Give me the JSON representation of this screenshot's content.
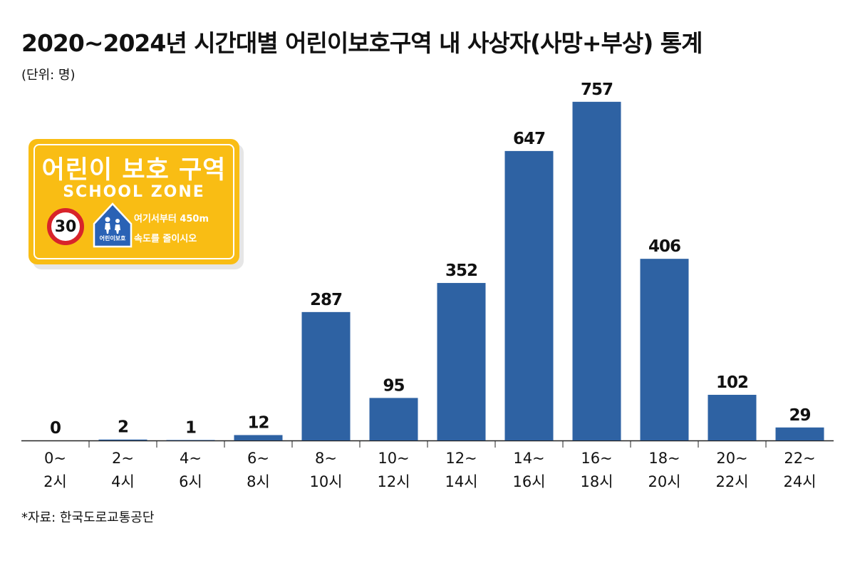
{
  "title": "2020~2024년 시간대별 어린이보호구역 내 사상자(사망+부상) 통계",
  "unit": "(단위: 명)",
  "source": "*자료: 한국도로교통공단",
  "sign": {
    "title": "어린이 보호 구역",
    "subtitle": "SCHOOL ZONE",
    "speed": "30",
    "icon_label": "어린이보호",
    "line1": "여기서부터 450m",
    "line2": "속도를 줄이시오",
    "icon": "pedestrian-children-icon",
    "colors": {
      "background": "#f9bd14",
      "speed_ring": "#d8232a",
      "icon_bg": "#2a62b5"
    }
  },
  "chart_data": {
    "type": "bar",
    "categories": [
      [
        "0~",
        "2시"
      ],
      [
        "2~",
        "4시"
      ],
      [
        "4~",
        "6시"
      ],
      [
        "6~",
        "8시"
      ],
      [
        "8~",
        "10시"
      ],
      [
        "10~",
        "12시"
      ],
      [
        "12~",
        "14시"
      ],
      [
        "14~",
        "16시"
      ],
      [
        "16~",
        "18시"
      ],
      [
        "18~",
        "20시"
      ],
      [
        "20~",
        "22시"
      ],
      [
        "22~",
        "24시"
      ]
    ],
    "values": [
      0,
      2,
      1,
      12,
      287,
      95,
      352,
      647,
      757,
      406,
      102,
      29
    ],
    "data_labels": [
      "0",
      "2",
      "1",
      "12",
      "287",
      "95",
      "352",
      "647",
      "757",
      "406",
      "102",
      "29"
    ],
    "bar_color": "#2e62a3",
    "grid": false
  }
}
